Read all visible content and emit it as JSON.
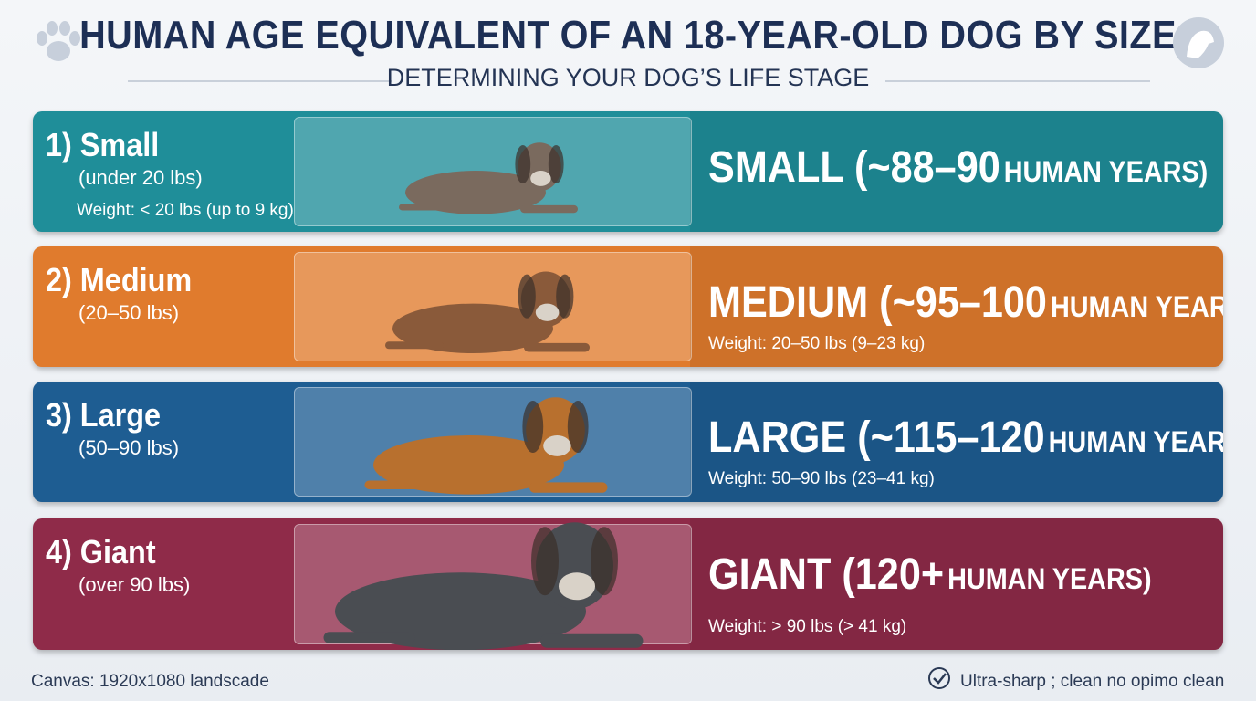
{
  "header": {
    "title": "HUMAN AGE EQUIVALENT OF AN 18-YEAR-OLD DOG BY SIZE",
    "subtitle": "DETERMINING YOUR DOG’S LIFE STAGE"
  },
  "rows": [
    {
      "label": "1) Small",
      "range": "(under 20 lbs)",
      "weight": "Weight: < 20 lbs (up to 9 kg)",
      "result": "SMALL (~88–90",
      "result_suffix": "HUMAN YEARS)"
    },
    {
      "label": "2) Medium",
      "range": "(20–50 lbs)",
      "weight": "Weight: 20–50 lbs (9–23 kg)",
      "result": "MEDIUM (~95–100",
      "result_suffix": "HUMAN YEARS)"
    },
    {
      "label": "3) Large",
      "range": "(50–90 lbs)",
      "weight": "Weight: 50–90 lbs (23–41 kg)",
      "result": "LARGE (~115–120",
      "result_suffix": "HUMAN YEARS)"
    },
    {
      "label": "4) Giant",
      "range": "(over 90 lbs)",
      "weight": "Weight: > 90 lbs (> 41 kg)",
      "result": "GIANT (120+",
      "result_suffix": "HUMAN YEARS)"
    }
  ],
  "footer": {
    "left": "Canvas: 1920x1080 landscade",
    "right": "Ultra-sharp ; clean no opimo clean"
  }
}
